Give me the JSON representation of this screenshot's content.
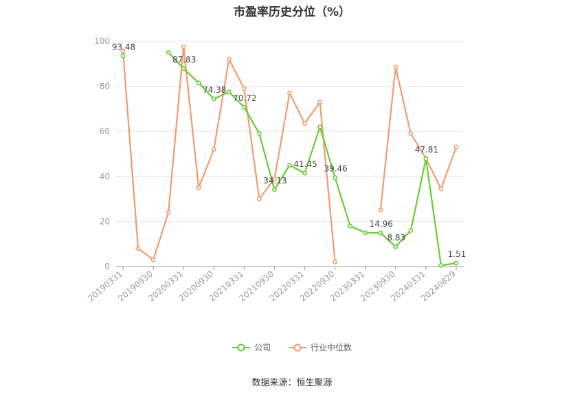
{
  "chart_data": {
    "type": "line",
    "title": "市盈率历史分位（%）",
    "ylim": [
      0,
      100
    ],
    "yticks": [
      0,
      20,
      40,
      60,
      80,
      100
    ],
    "grid": true,
    "legend_placement": "bottom",
    "x": [
      "20190331",
      "20190630",
      "20190930",
      "20191231",
      "20200331",
      "20200630",
      "20200930",
      "20201231",
      "20210331",
      "20210630",
      "20210930",
      "20211231",
      "20220331",
      "20220630",
      "20220930",
      "20221231",
      "20230331",
      "20230630",
      "20230930",
      "20231231",
      "20240331",
      "20240630",
      "20240829"
    ],
    "x_tick_labels": [
      "20190331",
      "20190930",
      "20200331",
      "20200930",
      "20210331",
      "20210930",
      "20220331",
      "20220930",
      "20230331",
      "20230930",
      "20240331",
      "20240829"
    ],
    "series": [
      {
        "name": "公司",
        "color": "#66cc33",
        "values": [
          93.48,
          null,
          null,
          95.0,
          87.83,
          81.5,
          74.38,
          77.5,
          70.72,
          59.0,
          34.13,
          45.0,
          41.45,
          62.0,
          39.46,
          18.0,
          15.0,
          14.96,
          8.83,
          16.0,
          47.81,
          0.5,
          1.51
        ],
        "labels": {
          "0": "93.48",
          "4": "87.83",
          "6": "74.38",
          "8": "70.72",
          "10": "34.13",
          "12": "41.45",
          "14": "39.46",
          "17": "14.96",
          "18": "8.83",
          "20": "47.81",
          "22": "1.51"
        }
      },
      {
        "name": "行业中位数",
        "color": "#f39a6d",
        "values": [
          95.5,
          8.0,
          3.0,
          24.0,
          97.5,
          35.0,
          52.0,
          92.0,
          79.0,
          30.0,
          39.0,
          77.0,
          63.5,
          73.0,
          2.0,
          null,
          null,
          25.0,
          88.5,
          59.0,
          48.0,
          34.5,
          53.0
        ]
      }
    ]
  },
  "legend": [
    {
      "label": "公司",
      "color": "#66cc33"
    },
    {
      "label": "行业中位数",
      "color": "#f39a6d"
    }
  ],
  "source": "数据来源：恒生聚源"
}
